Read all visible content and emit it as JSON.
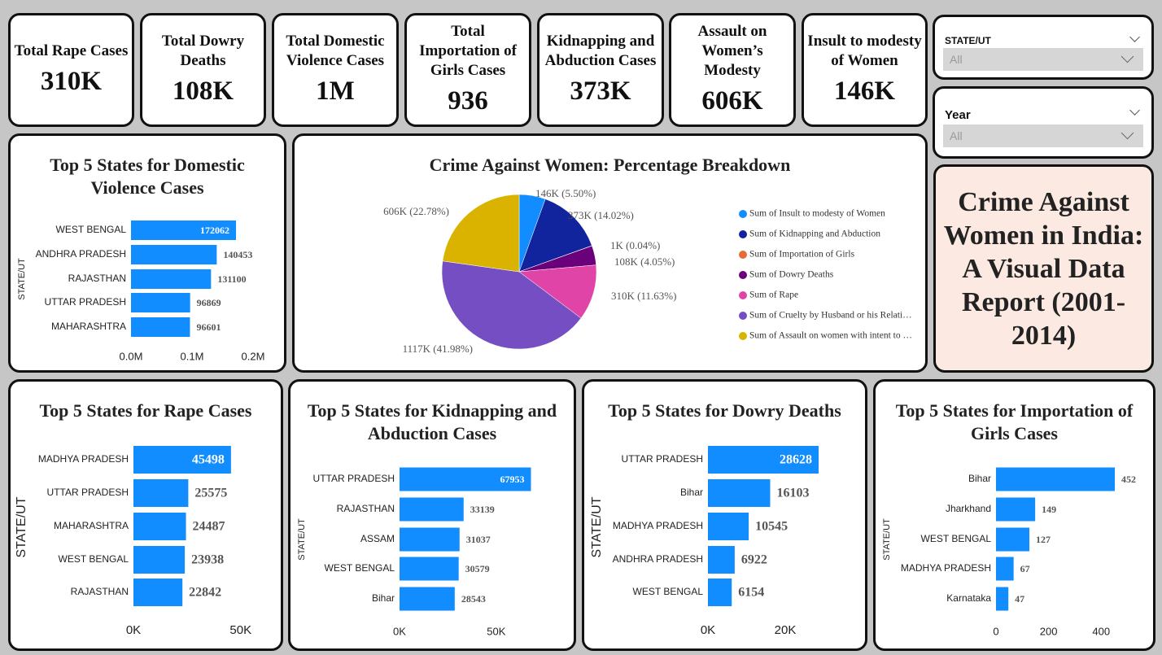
{
  "cards": [
    {
      "label": "Total Rape Cases",
      "value": "310K"
    },
    {
      "label": "Total Dowry Deaths",
      "value": "108K"
    },
    {
      "label": "Total Domestic Violence Cases",
      "value": "1M"
    },
    {
      "label": "Total Importation of Girls Cases",
      "value": "936"
    },
    {
      "label": "Kidnapping and Abduction Cases",
      "value": "373K"
    },
    {
      "label": "Assault on Women’s Modesty",
      "value": "606K"
    },
    {
      "label": "Insult to modesty of Women",
      "value": "146K"
    }
  ],
  "filters": [
    {
      "label": "STATE/UT",
      "value": "All"
    },
    {
      "label": "Year",
      "value": "All"
    }
  ],
  "report_title": "Crime Against Women in India: A Visual Data Report (2001-2014)",
  "chart_data": [
    {
      "type": "hbar",
      "title": "Top 5 States for Domestic Violence Cases",
      "y_label": "STATE/UT",
      "categories": [
        "WEST BENGAL",
        "ANDHRA PRADESH",
        "RAJASTHAN",
        "UTTAR PRADESH",
        "MAHARASHTRA"
      ],
      "values": [
        172062,
        140453,
        131100,
        96869,
        96601
      ],
      "color": "#118dff",
      "xlim": [
        0,
        220000
      ],
      "xticks": [
        {
          "value": 0,
          "label": "0.0M"
        },
        {
          "value": 100000,
          "label": "0.1M"
        },
        {
          "value": 200000,
          "label": "0.2M"
        }
      ]
    },
    {
      "type": "pie",
      "title": "Crime Against Women: Percentage Breakdown",
      "categories": [
        "Sum of Insult to modesty of Women",
        "Sum of Kidnapping and Abduction",
        "Sum of Importation of Girls",
        "Sum of Dowry Deaths",
        "Sum of Rape",
        "Sum of Cruelty by Husband or his Relati…",
        "Sum of Assault on women with intent to …"
      ],
      "values": [
        5.5,
        14.02,
        0.04,
        4.05,
        11.63,
        41.98,
        22.78
      ],
      "value_labels": [
        "146K (5.50%)",
        "373K (14.02%)",
        "1K (0.04%)",
        "108K (4.05%)",
        "310K (11.63%)",
        "1117K (41.98%)",
        "606K (22.78%)"
      ],
      "colors": [
        "#118dff",
        "#12239e",
        "#e66c37",
        "#6b007b",
        "#e044a7",
        "#744ec2",
        "#d9b300"
      ]
    },
    {
      "type": "hbar",
      "title": "Top 5 States for Rape Cases",
      "y_label": "STATE/UT",
      "categories": [
        "MADHYA PRADESH",
        "UTTAR PRADESH",
        "MAHARASHTRA",
        "WEST BENGAL",
        "RAJASTHAN"
      ],
      "values": [
        45498,
        25575,
        24487,
        23938,
        22842
      ],
      "color": "#118dff",
      "xlim": [
        0,
        63000
      ],
      "xticks": [
        {
          "value": 0,
          "label": "0K"
        },
        {
          "value": 50000,
          "label": "50K"
        }
      ]
    },
    {
      "type": "hbar",
      "title": "Top 5 States for Kidnapping and Abduction Cases",
      "y_label": "STATE/UT",
      "categories": [
        "UTTAR PRADESH",
        "RAJASTHAN",
        "ASSAM",
        "WEST BENGAL",
        "Bihar"
      ],
      "values": [
        67953,
        33139,
        31037,
        30579,
        28543
      ],
      "color": "#118dff",
      "xlim": [
        0,
        85000
      ],
      "xticks": [
        {
          "value": 0,
          "label": "0K"
        },
        {
          "value": 50000,
          "label": "50K"
        }
      ]
    },
    {
      "type": "hbar",
      "title": "Top 5 States for Dowry Deaths",
      "y_label": "STATE/UT",
      "categories": [
        "UTTAR PRADESH",
        "Bihar",
        "MADHYA PRADESH",
        "ANDHRA PRADESH",
        "WEST BENGAL"
      ],
      "values": [
        28628,
        16103,
        10545,
        6922,
        6154
      ],
      "color": "#118dff",
      "xlim": [
        0,
        36000
      ],
      "xticks": [
        {
          "value": 0,
          "label": "0K"
        },
        {
          "value": 20000,
          "label": "20K"
        }
      ]
    },
    {
      "type": "hbar",
      "title": "Top 5 States for Importation of Girls Cases",
      "y_label": "STATE/UT",
      "categories": [
        "Bihar",
        "Jharkhand",
        "WEST BENGAL",
        "MADHYA PRADESH",
        "Karnataka"
      ],
      "values": [
        452,
        149,
        127,
        67,
        47
      ],
      "color": "#118dff",
      "xlim": [
        0,
        520
      ],
      "xticks": [
        0,
        200,
        400
      ]
    }
  ]
}
